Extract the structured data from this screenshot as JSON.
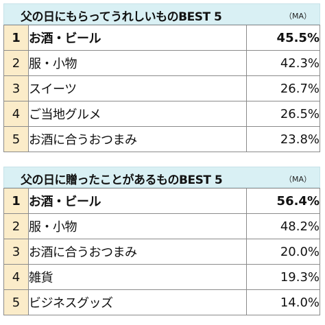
{
  "chart_data": [
    {
      "type": "table",
      "title": "父の日にもらってうれしいものBEST 5",
      "note": "（MA）",
      "rows": [
        {
          "rank": "1",
          "item": "お酒・ビール",
          "value": "45.5%"
        },
        {
          "rank": "2",
          "item": "服・小物",
          "value": "42.3%"
        },
        {
          "rank": "3",
          "item": "スイーツ",
          "value": "26.7%"
        },
        {
          "rank": "4",
          "item": "ご当地グルメ",
          "value": "26.5%"
        },
        {
          "rank": "5",
          "item": "お酒に合うおつまみ",
          "value": "23.8%"
        }
      ]
    },
    {
      "type": "table",
      "title": "父の日に贈ったことがあるものBEST 5",
      "note": "（MA）",
      "rows": [
        {
          "rank": "1",
          "item": "お酒・ビール",
          "value": "56.4%"
        },
        {
          "rank": "2",
          "item": "服・小物",
          "value": "48.2%"
        },
        {
          "rank": "3",
          "item": "お酒に合うおつまみ",
          "value": "20.0%"
        },
        {
          "rank": "4",
          "item": "雑貨",
          "value": "19.3%"
        },
        {
          "rank": "5",
          "item": "ビジネスグッズ",
          "value": "14.0%"
        }
      ]
    }
  ]
}
